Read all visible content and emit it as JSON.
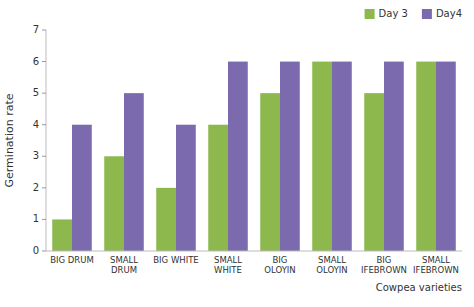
{
  "chart_data": {
    "type": "bar",
    "categories": [
      "BIG DRUM",
      "SMALL DRUM",
      "BIG WHITE",
      "SMALL WHITE",
      "BIG OLOYIN",
      "SMALL OLOYIN",
      "BIG\nIFEBROWN",
      "SMALL\nIFEBROWN"
    ],
    "series": [
      {
        "name": "Day 3",
        "color": "#8db84e",
        "values": [
          1,
          3,
          2,
          4,
          5,
          6,
          5,
          6
        ]
      },
      {
        "name": "Day4",
        "color": "#7b6aad",
        "values": [
          4,
          5,
          4,
          6,
          6,
          6,
          6,
          6
        ]
      }
    ],
    "ylabel": "Germination rate",
    "xlabel": "Cowpea varieties",
    "ylim": [
      0,
      7
    ],
    "yticks": [
      0,
      1,
      2,
      3,
      4,
      5,
      6,
      7
    ],
    "legend": "upper right",
    "grid": false
  }
}
